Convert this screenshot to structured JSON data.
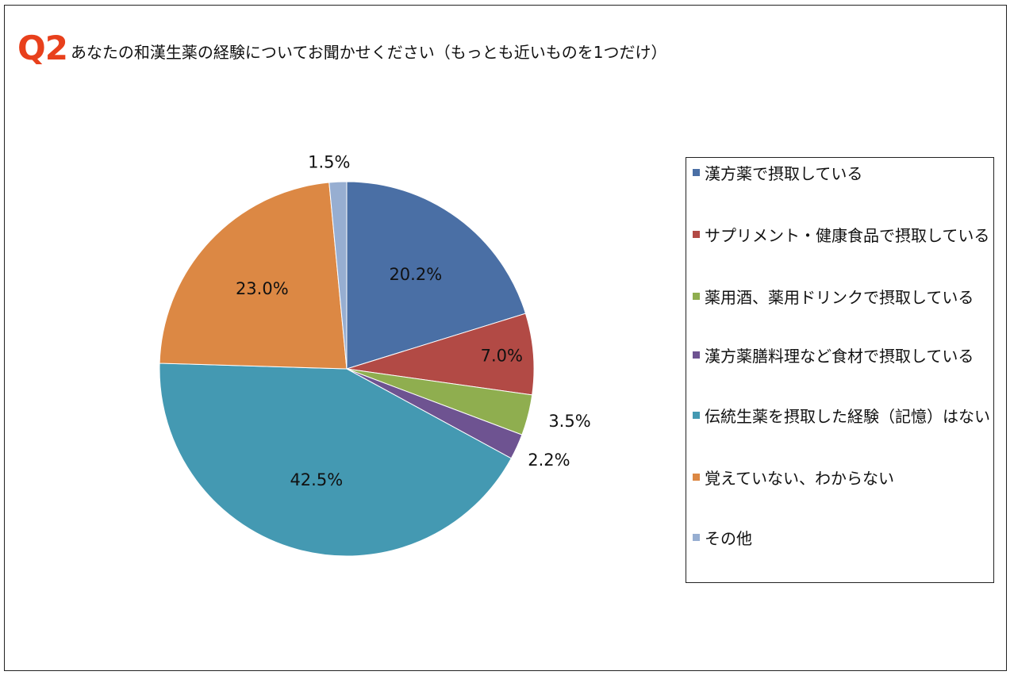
{
  "title": {
    "question_no": "Q2",
    "text": "あなたの和漢生薬の経験についてお聞かせください（もっとも近いものを1つだけ）"
  },
  "chart_data": {
    "type": "pie",
    "title": "あなたの和漢生薬の経験についてお聞かせください（もっとも近いものを1つだけ）",
    "categories": [
      "漢方薬で摂取している",
      "サプリメント・健康食品で摂取している",
      "薬用酒、薬用ドリンクで摂取している",
      "漢方薬膳料理など食材で摂取している",
      "伝統生薬を摂取した経験（記憶）はない",
      "覚えていない、わからない",
      "その他"
    ],
    "values": [
      20.2,
      7.0,
      3.5,
      2.2,
      42.5,
      23.0,
      1.5
    ],
    "labels": [
      "20.2%",
      "7.0%",
      "3.5%",
      "2.2%",
      "42.5%",
      "23.0%",
      "1.5%"
    ],
    "colors": [
      "#4a6fa5",
      "#b24a45",
      "#8fae4f",
      "#6e5391",
      "#4499b2",
      "#dc8844",
      "#97aed1"
    ],
    "legend_position": "right"
  }
}
